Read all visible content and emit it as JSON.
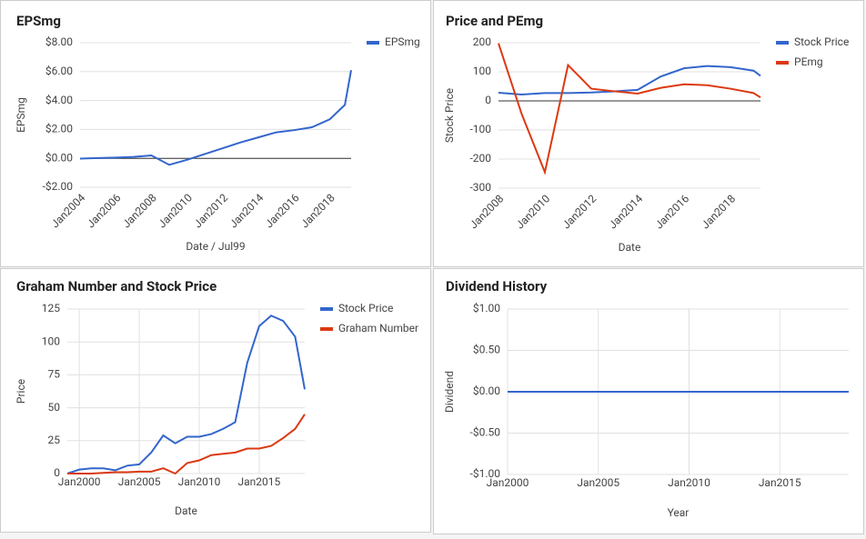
{
  "chart_data": [
    {
      "type": "line",
      "title": "EPSmg",
      "x_label": "Date / Jul99",
      "y_label": "EPSmg",
      "x": [
        2004,
        2005,
        2006,
        2007,
        2008,
        2009,
        2010,
        2011,
        2012,
        2013,
        2014,
        2015,
        2016,
        2017,
        2018,
        2018.85,
        2019.2
      ],
      "series": [
        {
          "name": "EPSmg",
          "color": "#3366cc",
          "values": [
            -0.02,
            0.02,
            0.05,
            0.1,
            0.2,
            -0.45,
            -0.1,
            0.3,
            0.7,
            1.1,
            1.45,
            1.8,
            1.95,
            2.15,
            2.7,
            3.7,
            6.1
          ]
        }
      ],
      "xlim": [
        2004,
        2019.2
      ],
      "ylim": [
        -2,
        8
      ],
      "xticks": [
        {
          "value": 2004,
          "label": "Jan2004"
        },
        {
          "value": 2006,
          "label": "Jan2006"
        },
        {
          "value": 2008,
          "label": "Jan2008"
        },
        {
          "value": 2010,
          "label": "Jan2010"
        },
        {
          "value": 2012,
          "label": "Jan2012"
        },
        {
          "value": 2014,
          "label": "Jan2014"
        },
        {
          "value": 2016,
          "label": "Jan2016"
        },
        {
          "value": 2018,
          "label": "Jan2018"
        }
      ],
      "yticks": [
        {
          "value": -2,
          "label": "-$2.00"
        },
        {
          "value": 0,
          "label": "$0.00"
        },
        {
          "value": 2,
          "label": "$2.00"
        },
        {
          "value": 4,
          "label": "$4.00"
        },
        {
          "value": 6,
          "label": "$6.00"
        },
        {
          "value": 8,
          "label": "$8.00"
        }
      ],
      "grid": true,
      "xgrid": false,
      "zero_line": true,
      "legend": "right"
    },
    {
      "type": "line",
      "title": "Price and PEmg",
      "x_label": "Date",
      "y_label": "Stock Price",
      "x": [
        2008,
        2009,
        2010,
        2011,
        2012,
        2013,
        2014,
        2015,
        2016,
        2017,
        2018,
        2019,
        2019.3
      ],
      "series": [
        {
          "name": "Stock Price",
          "color": "#3366cc",
          "values": [
            28,
            22,
            27,
            27,
            29,
            33,
            38,
            84,
            112,
            120,
            116,
            104,
            86
          ]
        },
        {
          "name": "PEmg",
          "color": "#dc3912",
          "values": [
            198,
            -45,
            -245,
            123,
            42,
            33,
            25,
            45,
            57,
            54,
            42,
            27,
            12
          ]
        }
      ],
      "xlim": [
        2008,
        2019.3
      ],
      "ylim": [
        -300,
        200
      ],
      "xticks": [
        {
          "value": 2008,
          "label": "Jan2008"
        },
        {
          "value": 2010,
          "label": "Jan2010"
        },
        {
          "value": 2012,
          "label": "Jan2012"
        },
        {
          "value": 2014,
          "label": "Jan2014"
        },
        {
          "value": 2016,
          "label": "Jan2016"
        },
        {
          "value": 2018,
          "label": "Jan2018"
        }
      ],
      "yticks": [
        -300,
        -200,
        -100,
        0,
        100,
        200
      ],
      "grid": true,
      "xgrid": false,
      "zero_line": true,
      "legend": "right"
    },
    {
      "type": "line",
      "title": "Graham Number and Stock Price",
      "x_label": "Date",
      "y_label": "Price",
      "x": [
        1999,
        2000,
        2001,
        2002,
        2003,
        2004,
        2005,
        2006,
        2007,
        2008,
        2009,
        2010,
        2011,
        2012,
        2013,
        2014,
        2015,
        2016,
        2017,
        2018,
        2018.8
      ],
      "series": [
        {
          "name": "Stock Price",
          "color": "#3366cc",
          "values": [
            0,
            3,
            4,
            4,
            2.5,
            6,
            7,
            16,
            29,
            23,
            28,
            28,
            30,
            34,
            39,
            84,
            112,
            120,
            116,
            104,
            64
          ]
        },
        {
          "name": "Graham Number",
          "color": "#dc3912",
          "values": [
            0,
            0,
            0,
            0.5,
            1,
            1,
            1.5,
            1.5,
            4,
            0,
            8,
            10,
            14,
            15,
            16,
            19,
            19,
            21,
            27,
            34,
            45
          ]
        }
      ],
      "xlim": [
        1999,
        2018.8
      ],
      "ylim": [
        0,
        125
      ],
      "xticks": [
        {
          "value": 2000,
          "label": "Jan2000"
        },
        {
          "value": 2005,
          "label": "Jan2005"
        },
        {
          "value": 2010,
          "label": "Jan2010"
        },
        {
          "value": 2015,
          "label": "Jan2015"
        }
      ],
      "yticks": [
        0,
        25,
        50,
        75,
        100,
        125
      ],
      "grid": true,
      "xgrid": true,
      "zero_line": false,
      "legend": "right"
    },
    {
      "type": "line",
      "title": "Dividend History",
      "x_label": "Year",
      "y_label": "Dividend",
      "x": [
        2000,
        2018.8
      ],
      "series": [
        {
          "color": "#3366cc",
          "values": [
            0,
            0
          ]
        }
      ],
      "xlim": [
        2000,
        2018.8
      ],
      "ylim": [
        -1,
        1
      ],
      "xticks": [
        {
          "value": 2000,
          "label": "Jan2000"
        },
        {
          "value": 2005,
          "label": "Jan2005"
        },
        {
          "value": 2010,
          "label": "Jan2010"
        },
        {
          "value": 2015,
          "label": "Jan2015"
        }
      ],
      "yticks": [
        {
          "value": -1,
          "label": "-$1.00"
        },
        {
          "value": -0.5,
          "label": "-$0.50"
        },
        {
          "value": 0,
          "label": "$0.00"
        },
        {
          "value": 0.5,
          "label": "$0.50"
        },
        {
          "value": 1,
          "label": "$1.00"
        }
      ],
      "grid": true,
      "xgrid": true,
      "zero_line": false,
      "legend": "none"
    }
  ]
}
